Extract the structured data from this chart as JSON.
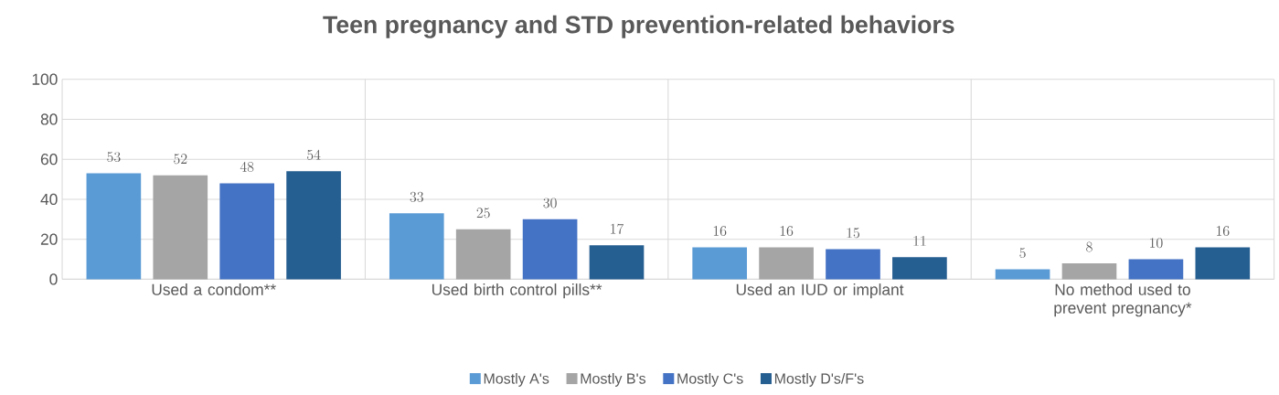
{
  "chart_data": {
    "type": "bar",
    "title": "Teen pregnancy and STD prevention-related behaviors",
    "categories": [
      "Used a condom**",
      "Used birth control pills**",
      "Used an IUD or implant",
      "No method used to prevent pregnancy*"
    ],
    "series": [
      {
        "name": "Mostly A's",
        "color": "#5b9bd5",
        "values": [
          53,
          33,
          16,
          5
        ]
      },
      {
        "name": "Mostly B's",
        "color": "#a5a5a5",
        "values": [
          52,
          25,
          16,
          8
        ]
      },
      {
        "name": "Mostly C's",
        "color": "#4472c4",
        "values": [
          48,
          30,
          15,
          10
        ]
      },
      {
        "name": "Mostly D's/F's",
        "color": "#255e91",
        "values": [
          54,
          17,
          11,
          16
        ]
      }
    ],
    "ylim": [
      0,
      100
    ],
    "yticks": [
      0,
      20,
      40,
      60,
      80,
      100
    ],
    "grid": true,
    "legend": "bottom",
    "data_labels": true
  }
}
